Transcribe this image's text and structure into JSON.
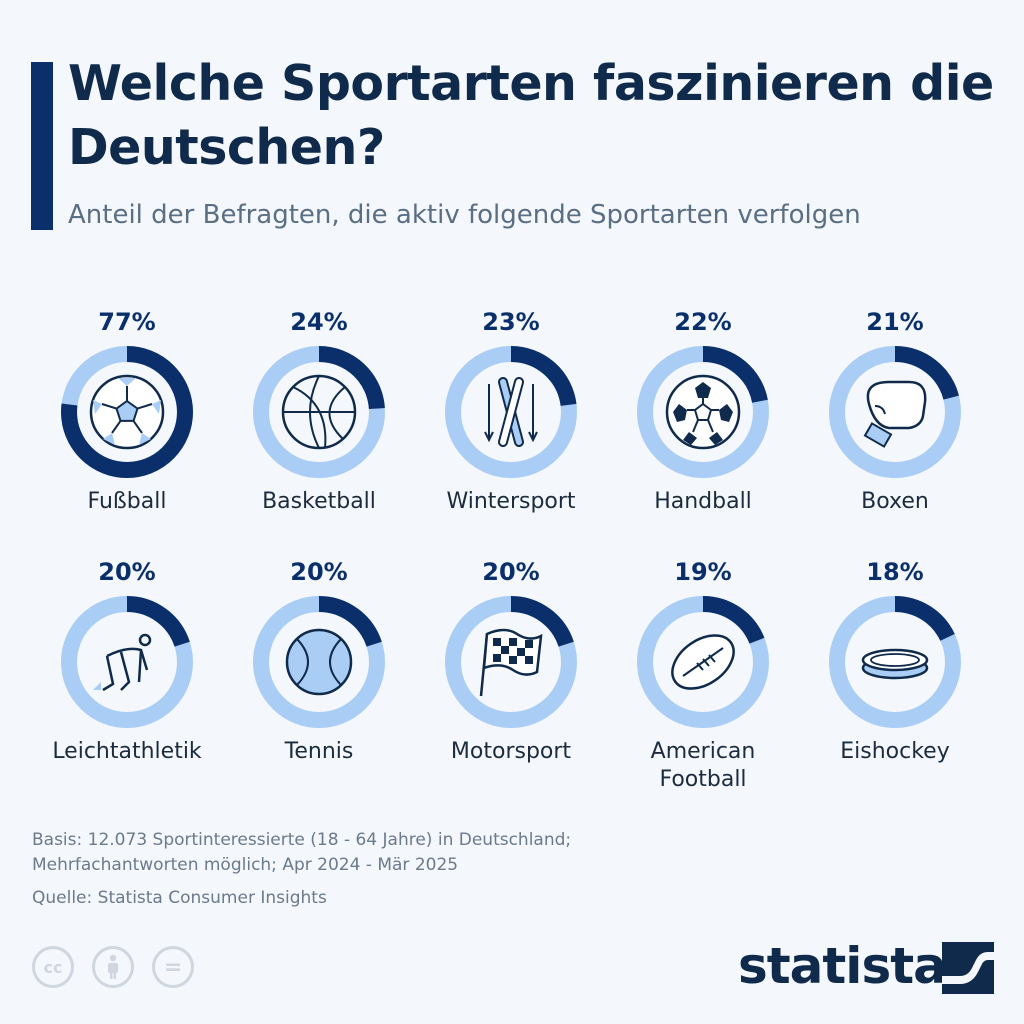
{
  "title": "Welche Sportarten faszinieren die Deutschen?",
  "subtitle": "Anteil der Befragten, die aktiv folgende Sportarten verfolgen",
  "colors": {
    "fill": "#0a2f6b",
    "track": "#a9cdf5",
    "icon": "#0f2a4a"
  },
  "chart_data": {
    "type": "pie",
    "subtype": "donut-grid",
    "unit": "%",
    "categories": [
      "Fußball",
      "Basketball",
      "Wintersport",
      "Handball",
      "Boxen",
      "Leichtathletik",
      "Tennis",
      "Motorsport",
      "American Football",
      "Eishockey"
    ],
    "values": [
      77,
      24,
      23,
      22,
      21,
      20,
      20,
      20,
      19,
      18
    ],
    "value_labels": [
      "77%",
      "24%",
      "23%",
      "22%",
      "21%",
      "20%",
      "20%",
      "20%",
      "19%",
      "18%"
    ],
    "icons": [
      "soccer-ball-icon",
      "basketball-icon",
      "skis-icon",
      "handball-icon",
      "boxing-glove-icon",
      "sprinter-start-icon",
      "tennis-ball-icon",
      "checkered-flag-icon",
      "american-football-icon",
      "hockey-puck-icon"
    ]
  },
  "footer": {
    "basis_line1": "Basis: 12.073 Sportinteressierte (18 - 64 Jahre) in Deutschland;",
    "basis_line2": "Mehrfachantworten möglich; Apr 2024 - Mär 2025",
    "source": "Quelle: Statista Consumer Insights"
  },
  "license": {
    "cc_label": "cc",
    "eq_label": "="
  },
  "brand": {
    "logo_text": "statista"
  }
}
